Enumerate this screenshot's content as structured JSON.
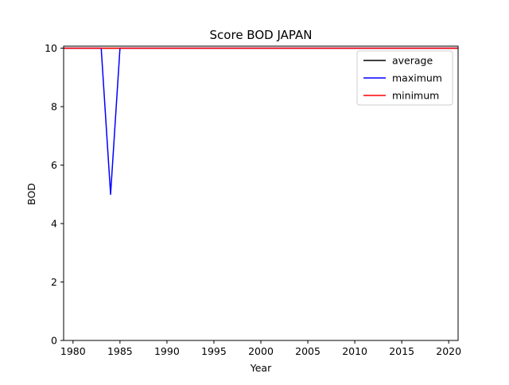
{
  "chart_data": {
    "type": "line",
    "title": "Score BOD JAPAN",
    "xlabel": "Year",
    "ylabel": "BOD",
    "xlim": [
      1979,
      2021
    ],
    "ylim": [
      0,
      10.07
    ],
    "xticks": [
      1980,
      1985,
      1990,
      1995,
      2000,
      2005,
      2010,
      2015,
      2020
    ],
    "yticks": [
      0,
      2,
      4,
      6,
      8,
      10
    ],
    "grid": false,
    "legend_position": "top-right",
    "series": [
      {
        "name": "average",
        "color": "#000000",
        "x": [
          1979,
          1980,
          1981,
          1982,
          1983,
          1984,
          1985,
          1986,
          1987,
          1988,
          1989,
          1990,
          1991,
          1992,
          1993,
          1994,
          1995,
          1996,
          1997,
          1998,
          1999,
          2000,
          2001,
          2002,
          2003,
          2004,
          2005,
          2006,
          2007,
          2008,
          2009,
          2010,
          2011,
          2012,
          2013,
          2014,
          2015,
          2016,
          2017,
          2018,
          2019,
          2020,
          2021
        ],
        "values": [
          10,
          10,
          10,
          10,
          10,
          10,
          10,
          10,
          10,
          10,
          10,
          10,
          10,
          10,
          10,
          10,
          10,
          10,
          10,
          10,
          10,
          10,
          10,
          10,
          10,
          10,
          10,
          10,
          10,
          10,
          10,
          10,
          10,
          10,
          10,
          10,
          10,
          10,
          10,
          10,
          10,
          10,
          10
        ]
      },
      {
        "name": "maximum",
        "color": "#0000ff",
        "x": [
          1979,
          1980,
          1981,
          1982,
          1983,
          1984,
          1985,
          1986,
          1987,
          1988,
          1989,
          1990,
          1991,
          1992,
          1993,
          1994,
          1995,
          1996,
          1997,
          1998,
          1999,
          2000,
          2001,
          2002,
          2003,
          2004,
          2005,
          2006,
          2007,
          2008,
          2009,
          2010,
          2011,
          2012,
          2013,
          2014,
          2015,
          2016,
          2017,
          2018,
          2019,
          2020,
          2021
        ],
        "values": [
          10,
          10,
          10,
          10,
          10,
          5,
          10,
          10,
          10,
          10,
          10,
          10,
          10,
          10,
          10,
          10,
          10,
          10,
          10,
          10,
          10,
          10,
          10,
          10,
          10,
          10,
          10,
          10,
          10,
          10,
          10,
          10,
          10,
          10,
          10,
          10,
          10,
          10,
          10,
          10,
          10,
          10,
          10
        ]
      },
      {
        "name": "minimum",
        "color": "#ff0000",
        "x": [
          1979,
          1980,
          1981,
          1982,
          1983,
          1984,
          1985,
          1986,
          1987,
          1988,
          1989,
          1990,
          1991,
          1992,
          1993,
          1994,
          1995,
          1996,
          1997,
          1998,
          1999,
          2000,
          2001,
          2002,
          2003,
          2004,
          2005,
          2006,
          2007,
          2008,
          2009,
          2010,
          2011,
          2012,
          2013,
          2014,
          2015,
          2016,
          2017,
          2018,
          2019,
          2020,
          2021
        ],
        "values": [
          10,
          10,
          10,
          10,
          10,
          10,
          10,
          10,
          10,
          10,
          10,
          10,
          10,
          10,
          10,
          10,
          10,
          10,
          10,
          10,
          10,
          10,
          10,
          10,
          10,
          10,
          10,
          10,
          10,
          10,
          10,
          10,
          10,
          10,
          10,
          10,
          10,
          10,
          10,
          10,
          10,
          10,
          10
        ]
      }
    ]
  }
}
